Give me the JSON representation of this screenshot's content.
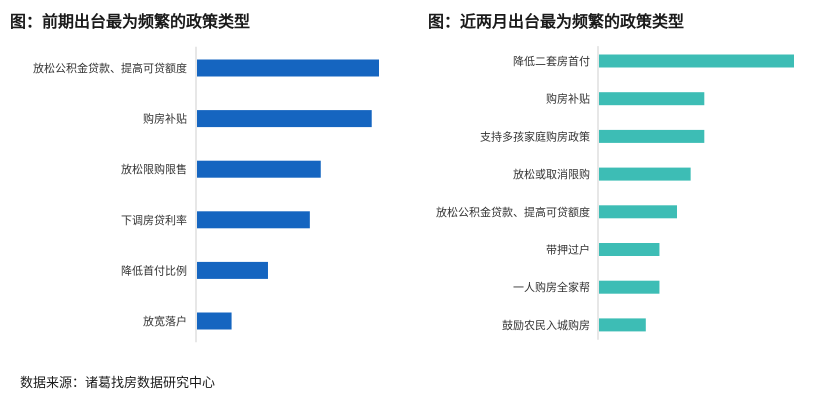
{
  "chart_data": [
    {
      "type": "bar",
      "orientation": "horizontal",
      "title": "图：前期出台最为频繁的政策类型",
      "categories": [
        "放松公积金贷款、提高可贷额度",
        "购房补贴",
        "放松限购限售",
        "下调房贷利率",
        "降低首付比例",
        "放宽落户"
      ],
      "values": [
        100,
        96,
        68,
        62,
        39,
        19
      ],
      "xlim": [
        0,
        100
      ],
      "color": "#1565c0",
      "grid": false,
      "legend": "none"
    },
    {
      "type": "bar",
      "orientation": "horizontal",
      "title": "图：近两月出台最为频繁的政策类型",
      "categories": [
        "降低二套房首付",
        "购房补贴",
        "支持多孩家庭购房政策",
        "放松或取消限购",
        "放松公积金贷款、提高可贷额度",
        "带押过户",
        "一人购房全家帮",
        "鼓励农民入城购房"
      ],
      "values": [
        100,
        54,
        54,
        47,
        40,
        31,
        31,
        24
      ],
      "xlim": [
        0,
        100
      ],
      "color": "#3dbdb5",
      "grid": false,
      "legend": "none"
    }
  ],
  "source": "数据来源：诸葛找房数据研究中心"
}
